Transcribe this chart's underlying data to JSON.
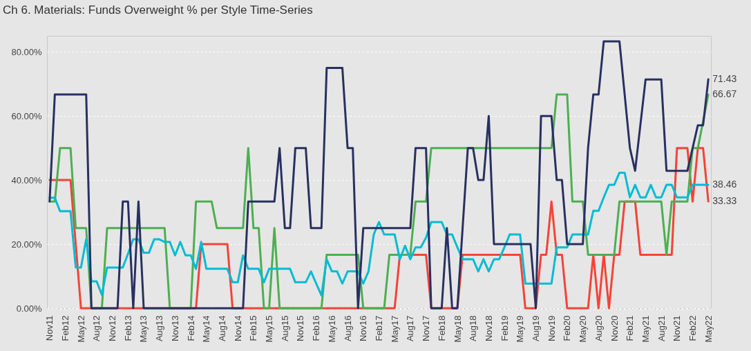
{
  "chart_data": {
    "type": "line",
    "title": "Ch 6. Materials:  Funds Overweight % per Style Time-Series",
    "categories": [
      "Nov11",
      null,
      null,
      "Feb12",
      null,
      null,
      "May12",
      null,
      null,
      "Aug12",
      null,
      null,
      "Nov12",
      null,
      null,
      "Feb13",
      null,
      null,
      "May13",
      null,
      null,
      "Aug13",
      null,
      null,
      "Nov13",
      null,
      null,
      "Feb14",
      null,
      null,
      "May14",
      null,
      null,
      "Aug14",
      null,
      null,
      "Nov14",
      null,
      null,
      "Feb15",
      null,
      null,
      "May15",
      null,
      null,
      "Aug15",
      null,
      null,
      "Nov15",
      null,
      null,
      "Feb16",
      null,
      null,
      "May16",
      null,
      null,
      "Aug16",
      null,
      null,
      "Nov16",
      null,
      null,
      "Feb17",
      null,
      null,
      "May17",
      null,
      null,
      "Aug17",
      null,
      null,
      "Nov17",
      null,
      null,
      "Feb18",
      null,
      null,
      "May18",
      null,
      null,
      "Aug18",
      null,
      null,
      "Nov18",
      null,
      null,
      "Feb19",
      null,
      null,
      "May19",
      null,
      null,
      "Aug19",
      null,
      null,
      "Nov19",
      null,
      null,
      "Feb20",
      null,
      null,
      "May20",
      null,
      null,
      "Aug20",
      null,
      null,
      "Nov20",
      null,
      null,
      "Feb21",
      null,
      null,
      "May21",
      null,
      null,
      "Aug21",
      null,
      null,
      "Nov21",
      null,
      null,
      "Feb22",
      null,
      null,
      "May22"
    ],
    "series": [
      {
        "color": "#f44336",
        "values": [
          40,
          40,
          40,
          40,
          40,
          20,
          0,
          0,
          0,
          0,
          0,
          0,
          0,
          0,
          0,
          0,
          0,
          0,
          0,
          0,
          0,
          0,
          0,
          0,
          0,
          0,
          0,
          0,
          0,
          20,
          20,
          20,
          20,
          20,
          20,
          0,
          0,
          0,
          0,
          0,
          0,
          0,
          0,
          0,
          0,
          0,
          0,
          0,
          0,
          0,
          0,
          0,
          0,
          0,
          0,
          0,
          0,
          0,
          0,
          0,
          0,
          0,
          0,
          0,
          0,
          0,
          0,
          16.7,
          16.7,
          16.7,
          16.7,
          16.7,
          16.7,
          0,
          0,
          0,
          0,
          0,
          0,
          16.7,
          16.7,
          16.7,
          16.7,
          16.7,
          16.7,
          16.7,
          16.7,
          16.7,
          16.7,
          16.7,
          16.7,
          0,
          0,
          0,
          16.7,
          16.7,
          33.3,
          16.7,
          16.7,
          0,
          0,
          0,
          0,
          0,
          16.7,
          0,
          16.7,
          0,
          16.7,
          16.7,
          33.3,
          33.3,
          33.3,
          16.7,
          16.7,
          16.7,
          16.7,
          16.7,
          16.7,
          16.7,
          50,
          50,
          50,
          33.3,
          50,
          50,
          33.33
        ]
      },
      {
        "color": "#4caf50",
        "values": [
          33.3,
          33.3,
          50,
          50,
          50,
          25,
          25,
          25,
          0,
          0,
          0,
          25,
          25,
          25,
          25,
          25,
          25,
          25,
          25,
          25,
          25,
          25,
          25,
          0,
          0,
          0,
          0,
          0,
          33.3,
          33.3,
          33.3,
          33.3,
          25,
          25,
          25,
          25,
          25,
          25,
          50,
          25,
          25,
          0,
          0,
          25,
          0,
          0,
          0,
          0,
          0,
          0,
          0,
          0,
          0,
          16.7,
          16.7,
          16.7,
          16.7,
          16.7,
          16.7,
          16.7,
          0,
          0,
          0,
          0,
          0,
          16.7,
          16.7,
          16.7,
          16.7,
          16.7,
          33.3,
          33.3,
          33.3,
          50,
          50,
          50,
          50,
          50,
          50,
          50,
          50,
          50,
          50,
          50,
          50,
          50,
          50,
          50,
          50,
          50,
          50,
          50,
          50,
          50,
          50,
          50,
          50,
          66.7,
          66.7,
          66.7,
          33.3,
          33.3,
          33.3,
          16.7,
          16.7,
          16.7,
          16.7,
          16.7,
          16.7,
          33.3,
          33.3,
          33.3,
          33.3,
          33.3,
          33.3,
          33.3,
          33.3,
          33.3,
          16.7,
          33.3,
          33.3,
          33.3,
          33.3,
          50,
          50,
          58.3,
          66.67
        ]
      },
      {
        "color": "#00bcd4",
        "values": [
          34.5,
          34.5,
          30.3,
          30.3,
          30.3,
          12.7,
          12.7,
          21.5,
          8.4,
          8.4,
          4.2,
          12.7,
          12.7,
          12.7,
          12.7,
          17,
          21.5,
          21.5,
          17.3,
          17.3,
          21.5,
          21.5,
          20.7,
          20.7,
          16.5,
          20.7,
          16.5,
          16.5,
          12.3,
          20.7,
          12.3,
          12.3,
          12.3,
          12.3,
          12.3,
          8.1,
          8.1,
          16.5,
          12.3,
          12.3,
          12.3,
          8.1,
          12.3,
          12.3,
          12.3,
          12.3,
          12.3,
          8.1,
          8.1,
          8.1,
          11.5,
          7.7,
          4,
          15.3,
          11.5,
          11.5,
          7.7,
          11.5,
          11.5,
          11.5,
          7.7,
          11.5,
          23,
          26.9,
          23,
          23,
          23,
          15.3,
          19.5,
          15.3,
          19,
          19,
          22,
          26.9,
          26.9,
          26.9,
          23,
          23,
          19,
          15.3,
          15.3,
          15.3,
          11.5,
          15.3,
          11.5,
          15.3,
          15.3,
          19,
          23,
          23,
          23,
          7.7,
          7.7,
          7.7,
          7.7,
          7.7,
          7.7,
          19,
          19,
          19,
          23,
          23,
          23,
          23,
          30.4,
          30.4,
          34.6,
          38.5,
          38.5,
          42.3,
          42.3,
          34.6,
          38.5,
          34.6,
          34.6,
          38.5,
          34.6,
          34.6,
          38.5,
          38.5,
          34.6,
          34.6,
          34.6,
          38.5,
          38.5,
          38.5,
          38.46
        ]
      },
      {
        "color": "#283061",
        "values": [
          33.3,
          66.7,
          66.7,
          66.7,
          66.7,
          66.7,
          66.7,
          66.7,
          0,
          0,
          0,
          0,
          0,
          0,
          33.3,
          33.3,
          0,
          33.3,
          0,
          0,
          0,
          0,
          0,
          0,
          0,
          0,
          0,
          0,
          0,
          0,
          0,
          0,
          0,
          0,
          0,
          0,
          0,
          0,
          33.3,
          33.3,
          33.3,
          33.3,
          33.3,
          33.3,
          50,
          25,
          25,
          50,
          50,
          50,
          25,
          25,
          25,
          75,
          75,
          75,
          75,
          50,
          50,
          0,
          25,
          25,
          25,
          25,
          25,
          25,
          25,
          25,
          25,
          25,
          50,
          50,
          50,
          0,
          0,
          0,
          25,
          0,
          0,
          25,
          50,
          50,
          40,
          40,
          60,
          20,
          20,
          20,
          20,
          20,
          20,
          20,
          20,
          0,
          60,
          60,
          60,
          40,
          40,
          20,
          20,
          20,
          20,
          50,
          66.7,
          66.7,
          83.3,
          83.3,
          83.3,
          83.3,
          66.7,
          50,
          42.9,
          57.1,
          71.4,
          71.4,
          71.4,
          71.4,
          42.9,
          42.9,
          42.9,
          42.9,
          42.9,
          50,
          57.1,
          57.1,
          71.43
        ]
      }
    ],
    "annotations": [
      {
        "text": "71.43",
        "x": "May22",
        "y": 71.43
      },
      {
        "text": "66.67",
        "x": "May22",
        "y": 66.67
      },
      {
        "text": "38.46",
        "x": "May22",
        "y": 38.46
      },
      {
        "text": "33.33",
        "x": "May22",
        "y": 33.33
      }
    ],
    "ylim": [
      0,
      85
    ],
    "yticks": [
      {
        "value": 0,
        "label": "0.00%"
      },
      {
        "value": 20,
        "label": "20.00%"
      },
      {
        "value": 40,
        "label": "40.00%"
      },
      {
        "value": 60,
        "label": "60.00%"
      },
      {
        "value": 80,
        "label": "80.00%"
      }
    ],
    "grid": "y",
    "line_style": "solid",
    "marker": "none"
  }
}
